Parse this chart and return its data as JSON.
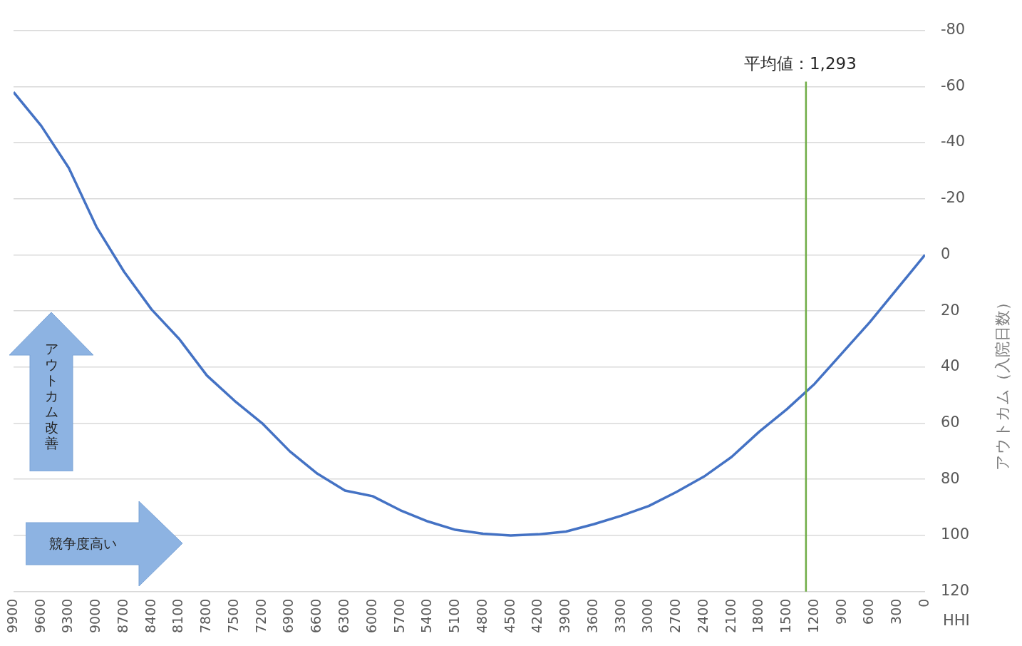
{
  "chart_data": {
    "type": "line",
    "xlabel": "HHI",
    "y2label": "アウトカム（入院日数）",
    "x": [
      9900,
      9600,
      9300,
      9000,
      8700,
      8400,
      8100,
      7800,
      7500,
      7200,
      6900,
      6600,
      6300,
      6000,
      5700,
      5400,
      5100,
      4800,
      4500,
      4200,
      3900,
      3600,
      3300,
      3000,
      2700,
      2400,
      2100,
      1800,
      1500,
      1200,
      900,
      600,
      300,
      0
    ],
    "series": [
      {
        "color": "#4472c4",
        "axis": "y2",
        "values": [
          -58,
          -46,
          -31,
          -10,
          6,
          19.5,
          30,
          43,
          52,
          60,
          70,
          78,
          84,
          86,
          91,
          95,
          98,
          99.4,
          100,
          99.6,
          98.6,
          96,
          93,
          89.5,
          84.5,
          79,
          72,
          63,
          55,
          46,
          35,
          24,
          12,
          0
        ]
      }
    ],
    "xlim": [
      9900,
      0
    ],
    "xticks": [
      9900,
      9600,
      9300,
      9000,
      8700,
      8400,
      8100,
      7800,
      7500,
      7200,
      6900,
      6600,
      6300,
      6000,
      5700,
      5400,
      5100,
      4800,
      4500,
      4200,
      3900,
      3600,
      3300,
      3000,
      2700,
      2400,
      2100,
      1800,
      1500,
      1200,
      900,
      600,
      300,
      0
    ],
    "y2lim": [
      120,
      -80
    ],
    "y2ticks": [
      -80,
      -60,
      -40,
      -20,
      0,
      20,
      40,
      60,
      80,
      100,
      120
    ],
    "grid": "y",
    "legend": false,
    "marker": "none",
    "line_style": "solid",
    "ref_lines": [
      {
        "axis": "x",
        "value": 1293,
        "label": "平均値：1,293",
        "color": "#70ad47"
      }
    ],
    "annotations": [
      "アウトカム改善",
      "競争度高い"
    ]
  }
}
